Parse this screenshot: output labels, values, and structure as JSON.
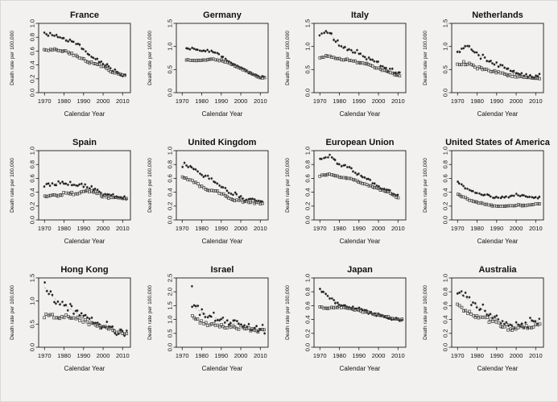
{
  "figure": {
    "background": "#f2f1ef",
    "grid_layout": "3 rows x 4 columns of scatter panels"
  },
  "chart_common": {
    "type": "scatter",
    "xlabel": "Calendar Year",
    "ylabel": "Death rate per 100,000",
    "xticks": [
      1970,
      1980,
      1990,
      2000,
      2010
    ],
    "xlim": [
      1967,
      2014
    ],
    "anchor_years": [
      1970,
      1975,
      1980,
      1985,
      1990,
      1995,
      2000,
      2005,
      2010
    ],
    "legend": "none",
    "grid": "off",
    "trend_line_style": "dashed gray fitted line per series",
    "markers": [
      "dark-asterisk-point",
      "open-square"
    ]
  },
  "chart_data": [
    {
      "title": "France",
      "ylim": [
        0,
        1.0
      ],
      "yticks": [
        0,
        0.2,
        0.4,
        0.6,
        0.8,
        1.0
      ],
      "year_start": 1970,
      "year_end": 2011,
      "series": [
        {
          "marker": "dark-asterisk-point",
          "values": [
            0.85,
            0.82,
            0.78,
            0.74,
            0.62,
            0.5,
            0.42,
            0.33,
            0.26
          ],
          "scatter_sd": 0.035
        },
        {
          "marker": "open-square",
          "values": [
            0.62,
            0.62,
            0.6,
            0.55,
            0.48,
            0.42,
            0.38,
            0.3,
            0.25
          ],
          "scatter_sd": 0.02
        }
      ]
    },
    {
      "title": "Germany",
      "ylim": [
        0,
        1.5
      ],
      "yticks": [
        0,
        0.5,
        1.0,
        1.5
      ],
      "year_start": 1972,
      "year_end": 2012,
      "series": [
        {
          "marker": "dark-asterisk-point",
          "values": [
            0.95,
            0.95,
            0.92,
            0.9,
            0.8,
            0.65,
            0.55,
            0.42,
            0.33
          ],
          "scatter_sd": 0.03
        },
        {
          "marker": "open-square",
          "values": [
            0.7,
            0.7,
            0.7,
            0.72,
            0.7,
            0.62,
            0.52,
            0.42,
            0.32
          ],
          "scatter_sd": 0.015
        }
      ]
    },
    {
      "title": "Italy",
      "ylim": [
        0,
        1.5
      ],
      "yticks": [
        0,
        0.5,
        1.0,
        1.5
      ],
      "year_start": 1970,
      "year_end": 2011,
      "series": [
        {
          "marker": "dark-asterisk-point",
          "values": [
            1.27,
            1.3,
            1.02,
            0.95,
            0.85,
            0.72,
            0.62,
            0.5,
            0.42
          ],
          "scatter_sd": 0.06
        },
        {
          "marker": "open-square",
          "values": [
            0.76,
            0.8,
            0.72,
            0.7,
            0.66,
            0.6,
            0.52,
            0.45,
            0.38
          ],
          "scatter_sd": 0.03
        }
      ]
    },
    {
      "title": "Netherlands",
      "ylim": [
        0,
        1.5
      ],
      "yticks": [
        0,
        0.5,
        1.0,
        1.5
      ],
      "year_start": 1970,
      "year_end": 2012,
      "series": [
        {
          "marker": "dark-asterisk-point",
          "values": [
            0.9,
            1.0,
            0.85,
            0.7,
            0.6,
            0.5,
            0.42,
            0.38,
            0.35
          ],
          "scatter_sd": 0.07
        },
        {
          "marker": "open-square",
          "values": [
            0.62,
            0.65,
            0.55,
            0.5,
            0.45,
            0.4,
            0.36,
            0.33,
            0.3
          ],
          "scatter_sd": 0.05
        }
      ]
    },
    {
      "title": "Spain",
      "ylim": [
        0,
        1.0
      ],
      "yticks": [
        0,
        0.2,
        0.4,
        0.6,
        0.8,
        1.0
      ],
      "year_start": 1970,
      "year_end": 2012,
      "series": [
        {
          "marker": "dark-asterisk-point",
          "values": [
            0.5,
            0.53,
            0.52,
            0.5,
            0.5,
            0.45,
            0.38,
            0.33,
            0.32
          ],
          "scatter_sd": 0.045
        },
        {
          "marker": "open-square",
          "values": [
            0.33,
            0.36,
            0.38,
            0.38,
            0.42,
            0.4,
            0.35,
            0.32,
            0.3
          ],
          "scatter_sd": 0.025
        }
      ]
    },
    {
      "title": "United Kingdom",
      "ylim": [
        0,
        1.0
      ],
      "yticks": [
        0,
        0.2,
        0.4,
        0.6,
        0.8,
        1.0
      ],
      "year_start": 1970,
      "year_end": 2011,
      "series": [
        {
          "marker": "dark-asterisk-point",
          "values": [
            0.8,
            0.77,
            0.65,
            0.58,
            0.5,
            0.38,
            0.32,
            0.3,
            0.27
          ],
          "scatter_sd": 0.045
        },
        {
          "marker": "open-square",
          "values": [
            0.62,
            0.58,
            0.48,
            0.42,
            0.38,
            0.3,
            0.27,
            0.26,
            0.25
          ],
          "scatter_sd": 0.025
        }
      ]
    },
    {
      "title": "European Union",
      "ylim": [
        0,
        1.0
      ],
      "yticks": [
        0,
        0.2,
        0.4,
        0.6,
        0.8,
        1.0
      ],
      "year_start": 1970,
      "year_end": 2010,
      "series": [
        {
          "marker": "dark-asterisk-point",
          "values": [
            0.88,
            0.92,
            0.8,
            0.75,
            0.65,
            0.58,
            0.48,
            0.42,
            0.35
          ],
          "scatter_sd": 0.025
        },
        {
          "marker": "open-square",
          "values": [
            0.64,
            0.66,
            0.62,
            0.6,
            0.55,
            0.5,
            0.45,
            0.4,
            0.32
          ],
          "scatter_sd": 0.012
        }
      ]
    },
    {
      "title": "United States of America",
      "ylim": [
        0,
        1.0
      ],
      "yticks": [
        0,
        0.2,
        0.4,
        0.6,
        0.8,
        1.0
      ],
      "year_start": 1970,
      "year_end": 2012,
      "series": [
        {
          "marker": "dark-asterisk-point",
          "values": [
            0.55,
            0.45,
            0.38,
            0.36,
            0.32,
            0.33,
            0.36,
            0.34,
            0.33
          ],
          "scatter_sd": 0.02
        },
        {
          "marker": "open-square",
          "values": [
            0.37,
            0.3,
            0.25,
            0.22,
            0.2,
            0.2,
            0.21,
            0.21,
            0.23
          ],
          "scatter_sd": 0.012
        }
      ]
    },
    {
      "title": "Hong Kong",
      "ylim": [
        0,
        1.5
      ],
      "yticks": [
        0,
        0.5,
        1.0,
        1.5
      ],
      "year_start": 1970,
      "year_end": 2012,
      "series": [
        {
          "marker": "dark-asterisk-point",
          "values": [
            1.3,
            1.05,
            0.92,
            0.78,
            0.65,
            0.55,
            0.48,
            0.42,
            0.28
          ],
          "scatter_sd": 0.12
        },
        {
          "marker": "open-square",
          "values": [
            0.7,
            0.68,
            0.65,
            0.62,
            0.6,
            0.5,
            0.45,
            0.4,
            0.3
          ],
          "scatter_sd": 0.07
        }
      ]
    },
    {
      "title": "Israel",
      "ylim": [
        0,
        2.5
      ],
      "yticks": [
        0,
        0.5,
        1.0,
        1.5,
        2.0,
        2.5
      ],
      "year_start": 1975,
      "year_end": 2012,
      "outliers": [
        {
          "year": 1975,
          "value": 2.2,
          "series": 0
        }
      ],
      "series": [
        {
          "marker": "dark-asterisk-point",
          "values": [
            1.7,
            1.5,
            1.25,
            1.1,
            1.0,
            0.9,
            0.8,
            0.7,
            0.65
          ],
          "scatter_sd": 0.17
        },
        {
          "marker": "open-square",
          "values": [
            1.2,
            1.1,
            0.9,
            0.8,
            0.75,
            0.72,
            0.68,
            0.65,
            0.62
          ],
          "scatter_sd": 0.1
        }
      ]
    },
    {
      "title": "Japan",
      "ylim": [
        0,
        1.0
      ],
      "yticks": [
        0,
        0.2,
        0.4,
        0.6,
        0.8,
        1.0
      ],
      "year_start": 1970,
      "year_end": 2012,
      "series": [
        {
          "marker": "dark-asterisk-point",
          "values": [
            0.83,
            0.72,
            0.62,
            0.58,
            0.55,
            0.5,
            0.47,
            0.43,
            0.4
          ],
          "scatter_sd": 0.025
        },
        {
          "marker": "open-square",
          "values": [
            0.58,
            0.57,
            0.58,
            0.56,
            0.53,
            0.5,
            0.46,
            0.43,
            0.4
          ],
          "scatter_sd": 0.015
        }
      ]
    },
    {
      "title": "Australia",
      "ylim": [
        0,
        1.0
      ],
      "yticks": [
        0,
        0.2,
        0.4,
        0.6,
        0.8,
        1.0
      ],
      "year_start": 1970,
      "year_end": 2012,
      "series": [
        {
          "marker": "dark-asterisk-point",
          "values": [
            0.8,
            0.7,
            0.6,
            0.5,
            0.42,
            0.35,
            0.32,
            0.35,
            0.38
          ],
          "scatter_sd": 0.09
        },
        {
          "marker": "open-square",
          "values": [
            0.6,
            0.52,
            0.45,
            0.4,
            0.35,
            0.28,
            0.26,
            0.3,
            0.3
          ],
          "scatter_sd": 0.055
        }
      ]
    }
  ]
}
